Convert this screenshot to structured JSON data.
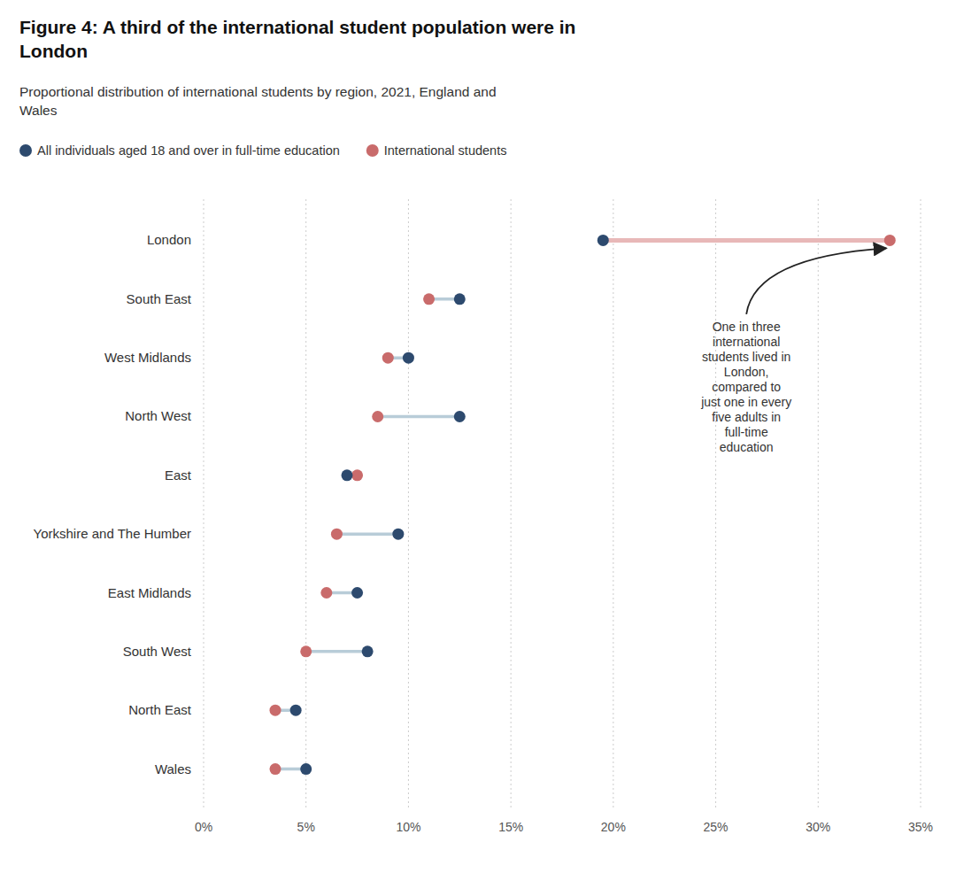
{
  "chart_data": {
    "type": "dumbbell",
    "orientation": "horizontal",
    "title": "Figure 4: A third of the international student population were in\nLondon",
    "subtitle": "Proportional distribution of international students by region, 2021, England and\nWales",
    "categories": [
      "London",
      "South East",
      "West Midlands",
      "North West",
      "East",
      "Yorkshire and The Humber",
      "East Midlands",
      "South West",
      "North East",
      "Wales"
    ],
    "series": [
      {
        "name": "All individuals aged 18 and over in full-time education",
        "color": "#2d4a6e",
        "values": [
          19.5,
          12.5,
          10.0,
          12.5,
          7.0,
          9.5,
          7.5,
          8.0,
          4.5,
          5.0
        ]
      },
      {
        "name": "International students",
        "color": "#c96b6b",
        "values": [
          33.5,
          11.0,
          9.0,
          8.5,
          7.5,
          6.5,
          6.0,
          5.0,
          3.5,
          3.5
        ]
      }
    ],
    "xlim": [
      0,
      35
    ],
    "xticks": [
      {
        "value": 0,
        "label": "0%"
      },
      {
        "value": 5,
        "label": "5%"
      },
      {
        "value": 10,
        "label": "10%"
      },
      {
        "value": 15,
        "label": "15%"
      },
      {
        "value": 20,
        "label": "20%"
      },
      {
        "value": 25,
        "label": "25%"
      },
      {
        "value": 30,
        "label": "30%"
      },
      {
        "value": 35,
        "label": "35%"
      }
    ],
    "grid": true,
    "legend": "top-left",
    "annotations": [
      "One in three\ninternational\nstudents lived in\nLondon,\ncompared to\njust one in every\nfive adults in\nfull-time\neducation"
    ]
  }
}
